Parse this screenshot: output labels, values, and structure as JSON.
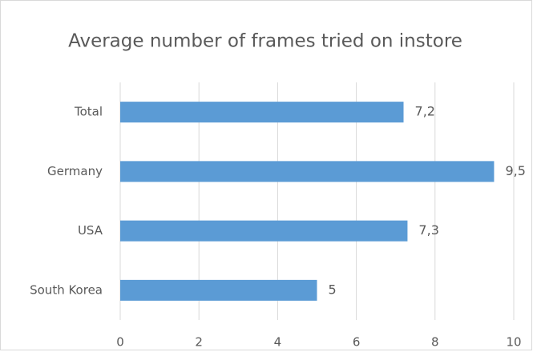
{
  "chart_data": {
    "type": "bar",
    "orientation": "horizontal",
    "title": "Average number of frames tried on instore",
    "categories": [
      "Total",
      "Germany",
      "USA",
      "South Korea"
    ],
    "values": [
      7.2,
      9.5,
      7.3,
      5
    ],
    "value_labels": [
      "7,2",
      "9,5",
      "7,3",
      "5"
    ],
    "color": "#5b9bd5",
    "xlim": [
      0,
      10
    ],
    "xticks": [
      0,
      2,
      4,
      6,
      8,
      10
    ],
    "grid": true
  }
}
